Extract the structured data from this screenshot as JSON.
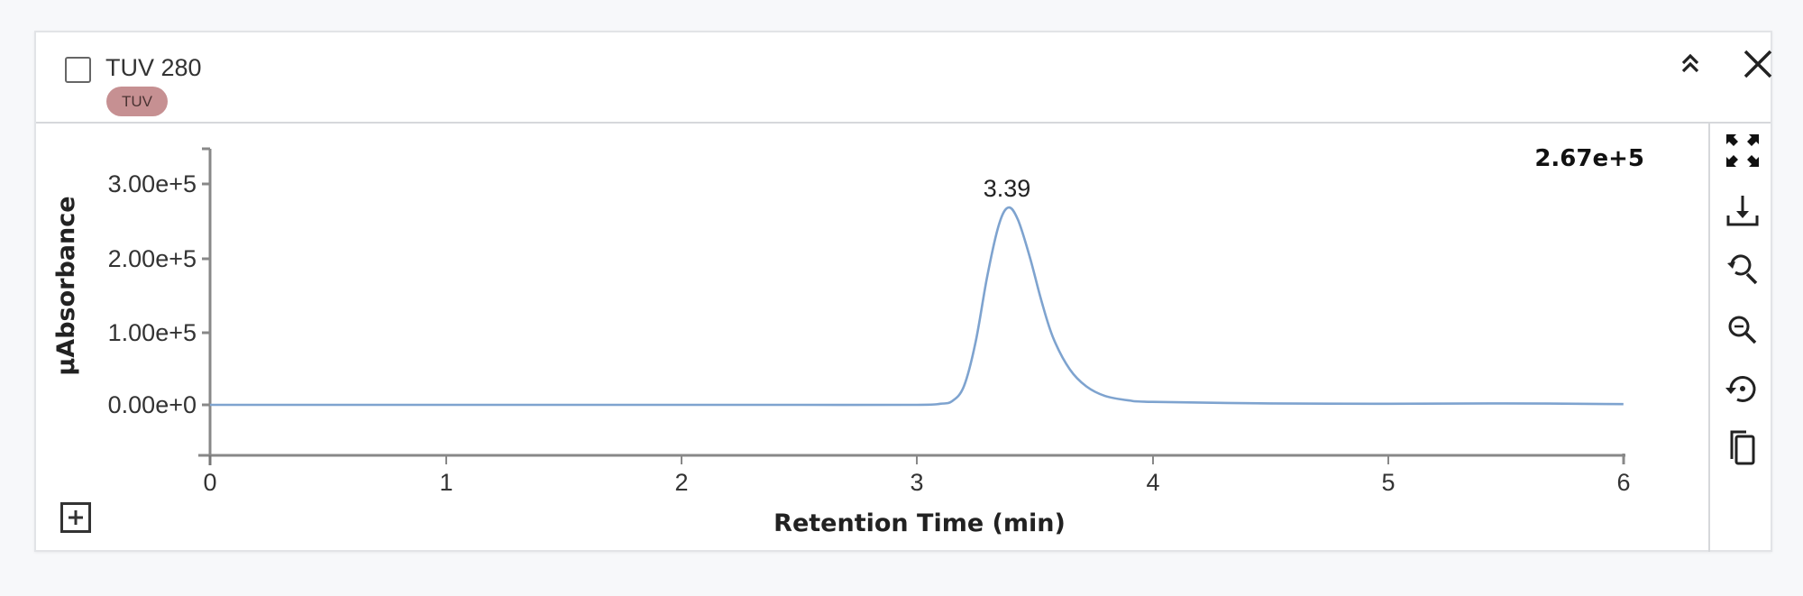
{
  "panel": {
    "title": "TUV 280",
    "badge": "TUV",
    "badge_color": "#c69092",
    "header_buttons": [
      {
        "name": "collapse-button",
        "icon": "double-chevron-up-icon"
      },
      {
        "name": "close-button",
        "icon": "close-icon"
      }
    ],
    "toolbar": [
      {
        "name": "fullscreen-button",
        "icon": "fullscreen-icon"
      },
      {
        "name": "download-button",
        "icon": "download-icon"
      },
      {
        "name": "zoom-in-button",
        "icon": "zoom-in-icon"
      },
      {
        "name": "zoom-out-button",
        "icon": "zoom-out-icon"
      },
      {
        "name": "reset-zoom-button",
        "icon": "reset-icon"
      },
      {
        "name": "copy-button",
        "icon": "copy-icon"
      }
    ],
    "expand_icon": "plus-square-icon"
  },
  "chart_data": {
    "type": "line",
    "title": "TUV 280",
    "xlabel": "Retention Time (min)",
    "ylabel": "µAbsorbance",
    "xlim": [
      0,
      6
    ],
    "ylim": [
      -60000.0,
      350000.0
    ],
    "x_ticks": [
      "0",
      "1",
      "2",
      "3",
      "4",
      "5",
      "6"
    ],
    "y_ticks": [
      "0.00e+0",
      "1.00e+5",
      "2.00e+5",
      "3.00e+5"
    ],
    "grid": false,
    "line_color": "#7ea3cf",
    "max_value_label": "2.67e+5",
    "peak_annotations": [
      {
        "x": 3.39,
        "y": 267000,
        "label": "3.39"
      }
    ],
    "series": [
      {
        "name": "TUV 280",
        "x": [
          0,
          0.5,
          1.0,
          1.5,
          2.0,
          2.5,
          3.0,
          3.1,
          3.15,
          3.2,
          3.25,
          3.3,
          3.35,
          3.39,
          3.43,
          3.48,
          3.53,
          3.58,
          3.65,
          3.72,
          3.8,
          3.9,
          4.0,
          4.5,
          5.0,
          5.5,
          6.0
        ],
        "values": [
          0,
          0,
          0,
          0,
          0,
          0,
          0,
          1500,
          5000,
          25000,
          85000,
          175000,
          245000,
          267000,
          250000,
          200000,
          140000,
          90000,
          48000,
          25000,
          12000,
          6000,
          4000,
          2000,
          1500,
          2000,
          1000
        ]
      }
    ]
  }
}
